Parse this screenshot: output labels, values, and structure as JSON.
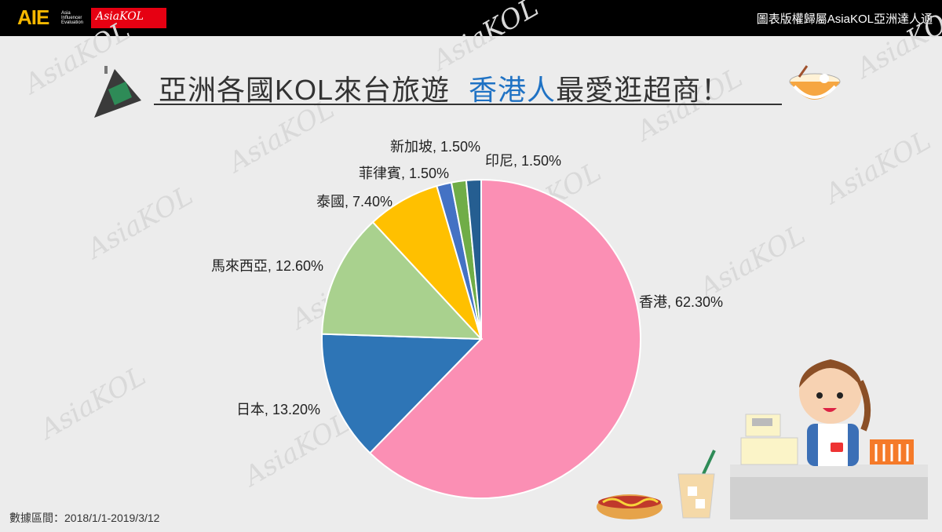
{
  "header": {
    "logo_aie": "AIE",
    "logo_aie_sub": [
      "Asia",
      "Influencer",
      "Evaluation"
    ],
    "logo_kol": "AsiaKOL",
    "copyright": "圖表版權歸屬AsiaKOL亞洲達人通"
  },
  "title": {
    "main": "亞洲各國KOL來台旅遊",
    "highlight": "香港人",
    "rest": "最愛逛超商！"
  },
  "footer": {
    "date_range": "數據區間：2018/1/1-2019/3/12"
  },
  "watermark": "AsiaKOL",
  "colors": {
    "topbar": "#000000",
    "highlight": "#1f72c4"
  },
  "chart_data": {
    "type": "pie",
    "title": "",
    "slices": [
      {
        "label": "香港",
        "value": 62.3,
        "display": "香港, 62.30%",
        "color": "#fb8fb4"
      },
      {
        "label": "日本",
        "value": 13.2,
        "display": "日本, 13.20%",
        "color": "#2e75b6"
      },
      {
        "label": "馬來西亞",
        "value": 12.6,
        "display": "馬來西亞, 12.60%",
        "color": "#a9d18e"
      },
      {
        "label": "泰國",
        "value": 7.4,
        "display": "泰國, 7.40%",
        "color": "#ffc000"
      },
      {
        "label": "菲律賓",
        "value": 1.5,
        "display": "菲律賓, 1.50%",
        "color": "#4472c4"
      },
      {
        "label": "新加坡",
        "value": 1.5,
        "display": "新加坡, 1.50%",
        "color": "#70ad47"
      },
      {
        "label": "印尼",
        "value": 1.5,
        "display": "印尼, 1.50%",
        "color": "#255e91"
      }
    ],
    "start_angle": "12 o'clock",
    "direction": "clockwise"
  }
}
